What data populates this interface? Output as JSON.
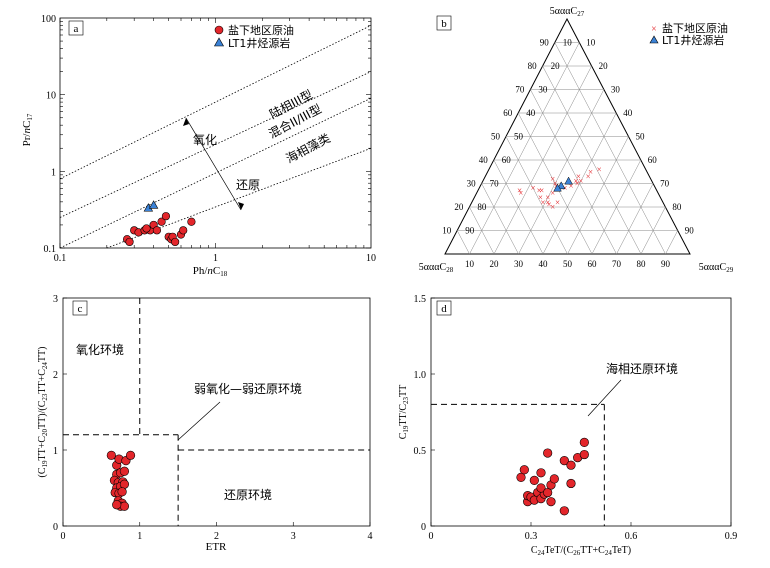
{
  "chart_data": [
    {
      "type": "scatter",
      "panel_label": "a",
      "xscale": "log",
      "yscale": "log",
      "xlim": [
        0.1,
        10
      ],
      "ylim": [
        0.1,
        100
      ],
      "x_ticks": [
        "0.1",
        "1",
        "10"
      ],
      "y_ticks": [
        "0.1",
        "1",
        "10",
        "100"
      ],
      "xlabel": "Ph/nC18",
      "ylabel": "Pr/nC17",
      "legend": {
        "placement": "top-left",
        "entries": [
          {
            "label": "盐下地区原油",
            "marker": "circle",
            "color": "#e3262b"
          },
          {
            "label": "LT1井烃源岩",
            "marker": "triangle",
            "color": "#3b82d6"
          }
        ]
      },
      "region_labels": [
        "陆相III型",
        "混合II/III型",
        "海相藻类",
        "氧化",
        "还原"
      ],
      "series": [
        {
          "name": "盐下地区原油",
          "points": [
            [
              0.27,
              0.13
            ],
            [
              0.28,
              0.12
            ],
            [
              0.3,
              0.17
            ],
            [
              0.32,
              0.16
            ],
            [
              0.35,
              0.17
            ],
            [
              0.38,
              0.17
            ],
            [
              0.4,
              0.2
            ],
            [
              0.42,
              0.17
            ],
            [
              0.45,
              0.22
            ],
            [
              0.48,
              0.26
            ],
            [
              0.5,
              0.14
            ],
            [
              0.52,
              0.13
            ],
            [
              0.53,
              0.14
            ],
            [
              0.55,
              0.12
            ],
            [
              0.6,
              0.15
            ],
            [
              0.62,
              0.17
            ],
            [
              0.7,
              0.22
            ],
            [
              0.36,
              0.18
            ]
          ]
        },
        {
          "name": "LT1井烃源岩",
          "points": [
            [
              0.37,
              0.33
            ],
            [
              0.4,
              0.36
            ]
          ]
        }
      ]
    },
    {
      "type": "ternary",
      "panel_label": "b",
      "apex_labels": {
        "top": "5αααC27",
        "left": "5αααC28",
        "right": "5αααC29"
      },
      "tick_labels": [
        "10",
        "20",
        "30",
        "40",
        "50",
        "60",
        "70",
        "80",
        "90"
      ],
      "legend": {
        "placement": "top-right",
        "entries": [
          {
            "label": "盐下地区原油",
            "marker": "cross",
            "color": "#e3262b"
          },
          {
            "label": "LT1井烃源岩",
            "marker": "triangle",
            "color": "#3b82d6"
          }
        ]
      },
      "series": [
        {
          "name": "盐下地区原油",
          "points": [
            [
              0.36,
              0.45
            ],
            [
              0.35,
              0.42
            ],
            [
              0.33,
              0.42
            ],
            [
              0.31,
              0.4
            ],
            [
              0.31,
              0.38
            ],
            [
              0.29,
              0.37
            ],
            [
              0.28,
              0.35
            ],
            [
              0.26,
              0.31
            ],
            [
              0.24,
              0.3
            ],
            [
              0.32,
              0.28
            ],
            [
              0.3,
              0.3
            ],
            [
              0.29,
              0.31
            ],
            [
              0.27,
              0.26
            ],
            [
              0.27,
              0.25
            ],
            [
              0.28,
              0.22
            ],
            [
              0.26,
              0.18
            ],
            [
              0.27,
              0.17
            ],
            [
              0.22,
              0.35
            ],
            [
              0.22,
              0.31
            ],
            [
              0.2,
              0.34
            ],
            [
              0.21,
              0.32
            ],
            [
              0.22,
              0.29
            ],
            [
              0.24,
              0.27
            ],
            [
              0.33,
              0.38
            ],
            [
              0.3,
              0.39
            ]
          ]
        },
        {
          "name": "LT1井烃源岩",
          "points": [
            [
              0.31,
              0.35
            ],
            [
              0.29,
              0.33
            ],
            [
              0.28,
              0.32
            ]
          ]
        }
      ]
    },
    {
      "type": "scatter",
      "panel_label": "c",
      "xlim": [
        0,
        4
      ],
      "ylim": [
        0,
        3
      ],
      "x_ticks": [
        "0",
        "1",
        "2",
        "3",
        "4"
      ],
      "y_ticks": [
        "0",
        "1",
        "2",
        "3"
      ],
      "xlabel": "ETR",
      "ylabel": "(C19TT+C20TT)/(C23TT+C24TT)",
      "region_labels": [
        "氧化环境",
        "弱氧化—弱还原环境",
        "还原环境"
      ],
      "series": [
        {
          "name": "盐下地区原油",
          "points": [
            [
              0.63,
              0.93
            ],
            [
              0.7,
              0.8
            ],
            [
              0.73,
              0.88
            ],
            [
              0.82,
              0.86
            ],
            [
              0.88,
              0.93
            ],
            [
              0.7,
              0.68
            ],
            [
              0.75,
              0.7
            ],
            [
              0.8,
              0.72
            ],
            [
              0.67,
              0.6
            ],
            [
              0.72,
              0.57
            ],
            [
              0.78,
              0.58
            ],
            [
              0.7,
              0.5
            ],
            [
              0.75,
              0.52
            ],
            [
              0.8,
              0.55
            ],
            [
              0.68,
              0.44
            ],
            [
              0.73,
              0.43
            ],
            [
              0.77,
              0.45
            ],
            [
              0.72,
              0.33
            ],
            [
              0.77,
              0.3
            ],
            [
              0.75,
              0.26
            ],
            [
              0.8,
              0.26
            ],
            [
              0.7,
              0.28
            ]
          ]
        }
      ]
    },
    {
      "type": "scatter",
      "panel_label": "d",
      "xlim": [
        0,
        0.9
      ],
      "ylim": [
        0,
        1.5
      ],
      "x_ticks": [
        "0",
        "0.3",
        "0.6",
        "0.9"
      ],
      "y_ticks": [
        "0",
        "0.5",
        "1.0",
        "1.5"
      ],
      "xlabel": "C24TeT/(C26TT+C24TeT)",
      "ylabel": "C19TT/C23TT",
      "region_labels": [
        "海相还原环境"
      ],
      "series": [
        {
          "name": "盐下地区原油",
          "points": [
            [
              0.29,
              0.16
            ],
            [
              0.29,
              0.2
            ],
            [
              0.3,
              0.19
            ],
            [
              0.31,
              0.17
            ],
            [
              0.32,
              0.22
            ],
            [
              0.33,
              0.18
            ],
            [
              0.34,
              0.21
            ],
            [
              0.33,
              0.25
            ],
            [
              0.35,
              0.22
            ],
            [
              0.36,
              0.27
            ],
            [
              0.36,
              0.16
            ],
            [
              0.27,
              0.32
            ],
            [
              0.28,
              0.37
            ],
            [
              0.31,
              0.3
            ],
            [
              0.33,
              0.35
            ],
            [
              0.35,
              0.48
            ],
            [
              0.4,
              0.43
            ],
            [
              0.42,
              0.4
            ],
            [
              0.42,
              0.28
            ],
            [
              0.44,
              0.45
            ],
            [
              0.46,
              0.55
            ],
            [
              0.46,
              0.47
            ],
            [
              0.4,
              0.1
            ],
            [
              0.37,
              0.31
            ]
          ]
        }
      ]
    }
  ]
}
